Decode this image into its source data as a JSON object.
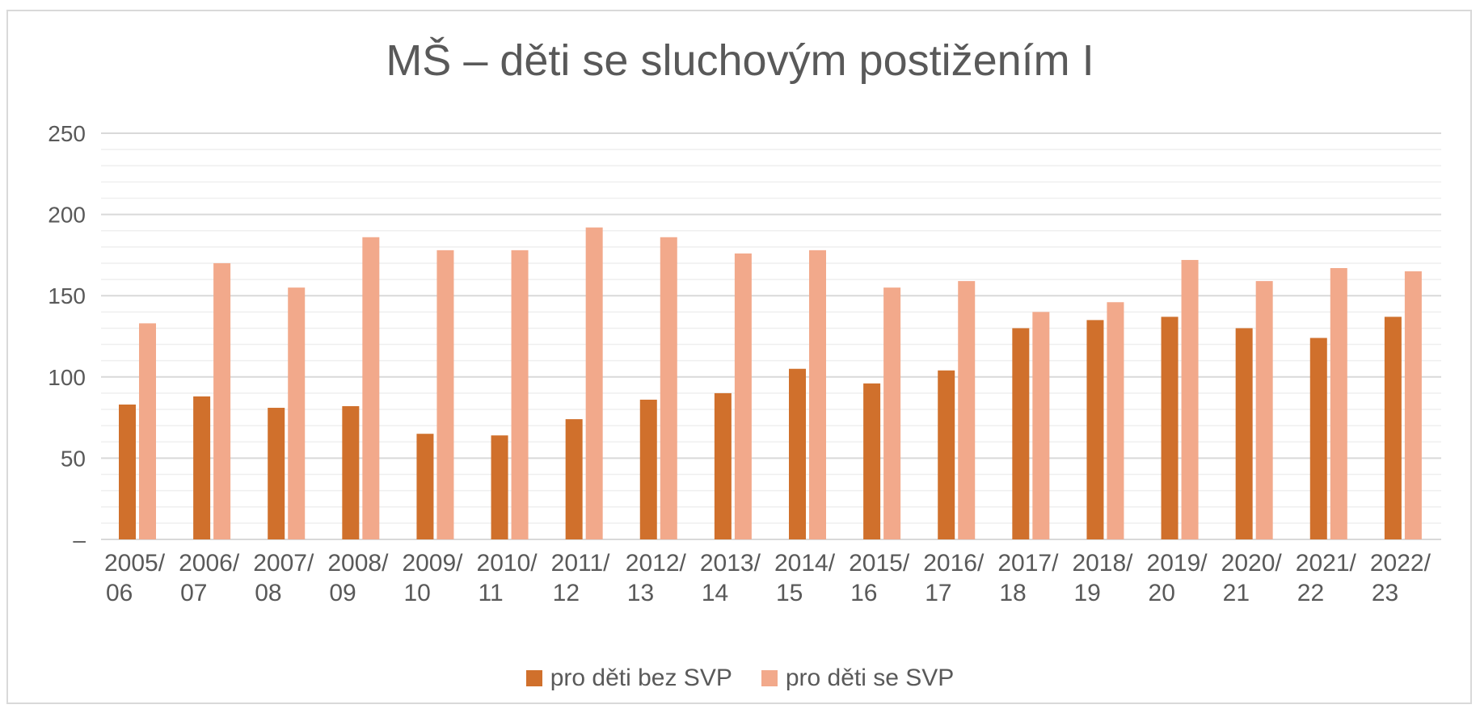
{
  "chart_data": {
    "type": "bar",
    "title": "MŠ – děti se sluchovým postižením I",
    "xlabel": "",
    "ylabel": "",
    "ylim": [
      0,
      250
    ],
    "yticks": [
      0,
      50,
      100,
      150,
      200,
      250
    ],
    "ytick_labels": [
      "–",
      "50",
      "100",
      "150",
      "200",
      "250"
    ],
    "grid": true,
    "legend_position": "bottom",
    "categories": [
      [
        "2005/",
        "06"
      ],
      [
        "2006/",
        "07"
      ],
      [
        "2007/",
        "08"
      ],
      [
        "2008/",
        "09"
      ],
      [
        "2009/",
        "10"
      ],
      [
        "2010/",
        "11"
      ],
      [
        "2011/",
        "12"
      ],
      [
        "2012/",
        "13"
      ],
      [
        "2013/",
        "14"
      ],
      [
        "2014/",
        "15"
      ],
      [
        "2015/",
        "16"
      ],
      [
        "2016/",
        "17"
      ],
      [
        "2017/",
        "18"
      ],
      [
        "2018/",
        "19"
      ],
      [
        "2019/",
        "20"
      ],
      [
        "2020/",
        "21"
      ],
      [
        "2021/",
        "22"
      ],
      [
        "2022/",
        "23"
      ]
    ],
    "series": [
      {
        "name": "pro děti bez SVP",
        "color": "#d0702c",
        "values": [
          83,
          88,
          81,
          82,
          65,
          64,
          74,
          86,
          90,
          105,
          96,
          104,
          130,
          135,
          137,
          130,
          124,
          137
        ]
      },
      {
        "name": "pro děti se SVP",
        "color": "#f2a98b",
        "values": [
          133,
          170,
          155,
          186,
          178,
          178,
          192,
          186,
          176,
          178,
          155,
          159,
          140,
          146,
          172,
          159,
          167,
          165
        ]
      }
    ]
  }
}
